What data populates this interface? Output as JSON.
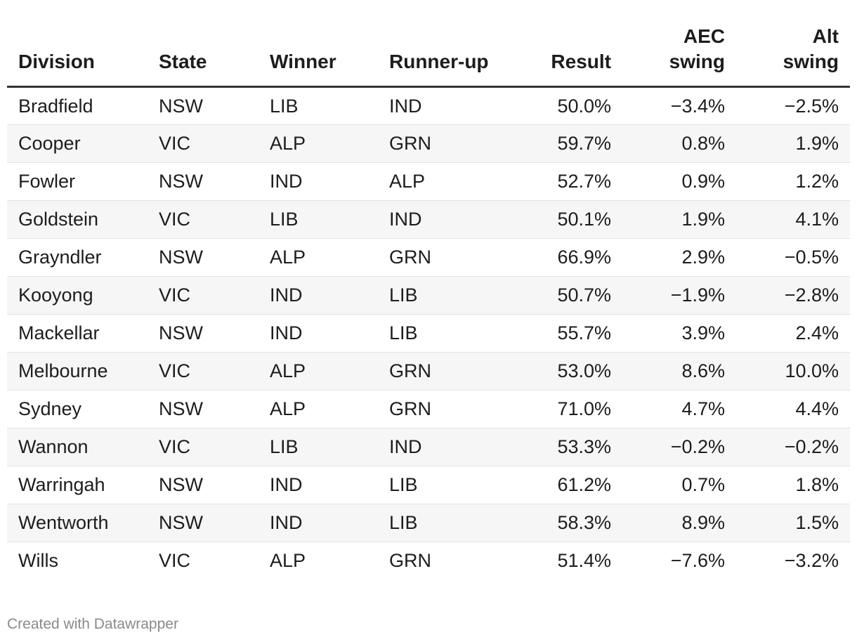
{
  "chart_data": {
    "type": "table",
    "columns": [
      {
        "key": "division",
        "label": "Division",
        "label_lines": [
          "Division"
        ],
        "align": "left"
      },
      {
        "key": "state",
        "label": "State",
        "label_lines": [
          "State"
        ],
        "align": "left"
      },
      {
        "key": "winner",
        "label": "Winner",
        "label_lines": [
          "Winner"
        ],
        "align": "left"
      },
      {
        "key": "runner_up",
        "label": "Runner-up",
        "label_lines": [
          "Runner-up"
        ],
        "align": "left"
      },
      {
        "key": "result",
        "label": "Result",
        "label_lines": [
          "Result"
        ],
        "align": "right"
      },
      {
        "key": "aec_swing",
        "label": "AEC swing",
        "label_lines": [
          "AEC",
          "swing"
        ],
        "align": "right"
      },
      {
        "key": "alt_swing",
        "label": "Alt swing",
        "label_lines": [
          "Alt",
          "swing"
        ],
        "align": "right"
      }
    ],
    "rows": [
      {
        "division": "Bradfield",
        "state": "NSW",
        "winner": "LIB",
        "runner_up": "IND",
        "result": "50.0%",
        "aec_swing": "−3.4%",
        "alt_swing": "−2.5%"
      },
      {
        "division": "Cooper",
        "state": "VIC",
        "winner": "ALP",
        "runner_up": "GRN",
        "result": "59.7%",
        "aec_swing": "0.8%",
        "alt_swing": "1.9%"
      },
      {
        "division": "Fowler",
        "state": "NSW",
        "winner": "IND",
        "runner_up": "ALP",
        "result": "52.7%",
        "aec_swing": "0.9%",
        "alt_swing": "1.2%"
      },
      {
        "division": "Goldstein",
        "state": "VIC",
        "winner": "LIB",
        "runner_up": "IND",
        "result": "50.1%",
        "aec_swing": "1.9%",
        "alt_swing": "4.1%"
      },
      {
        "division": "Grayndler",
        "state": "NSW",
        "winner": "ALP",
        "runner_up": "GRN",
        "result": "66.9%",
        "aec_swing": "2.9%",
        "alt_swing": "−0.5%"
      },
      {
        "division": "Kooyong",
        "state": "VIC",
        "winner": "IND",
        "runner_up": "LIB",
        "result": "50.7%",
        "aec_swing": "−1.9%",
        "alt_swing": "−2.8%"
      },
      {
        "division": "Mackellar",
        "state": "NSW",
        "winner": "IND",
        "runner_up": "LIB",
        "result": "55.7%",
        "aec_swing": "3.9%",
        "alt_swing": "2.4%"
      },
      {
        "division": "Melbourne",
        "state": "VIC",
        "winner": "ALP",
        "runner_up": "GRN",
        "result": "53.0%",
        "aec_swing": "8.6%",
        "alt_swing": "10.0%"
      },
      {
        "division": "Sydney",
        "state": "NSW",
        "winner": "ALP",
        "runner_up": "GRN",
        "result": "71.0%",
        "aec_swing": "4.7%",
        "alt_swing": "4.4%"
      },
      {
        "division": "Wannon",
        "state": "VIC",
        "winner": "LIB",
        "runner_up": "IND",
        "result": "53.3%",
        "aec_swing": "−0.2%",
        "alt_swing": "−0.2%"
      },
      {
        "division": "Warringah",
        "state": "NSW",
        "winner": "IND",
        "runner_up": "LIB",
        "result": "61.2%",
        "aec_swing": "0.7%",
        "alt_swing": "1.8%"
      },
      {
        "division": "Wentworth",
        "state": "NSW",
        "winner": "IND",
        "runner_up": "LIB",
        "result": "58.3%",
        "aec_swing": "8.9%",
        "alt_swing": "1.5%"
      },
      {
        "division": "Wills",
        "state": "VIC",
        "winner": "ALP",
        "runner_up": "GRN",
        "result": "51.4%",
        "aec_swing": "−7.6%",
        "alt_swing": "−3.2%"
      }
    ]
  },
  "footer": {
    "credit": "Created with Datawrapper"
  },
  "colors": {
    "text": "#1d1d1d",
    "header_rule": "#333333",
    "row_stripe": "#f6f6f6",
    "row_divider": "#e3e3e3",
    "footer_text": "#8a8a8a"
  }
}
